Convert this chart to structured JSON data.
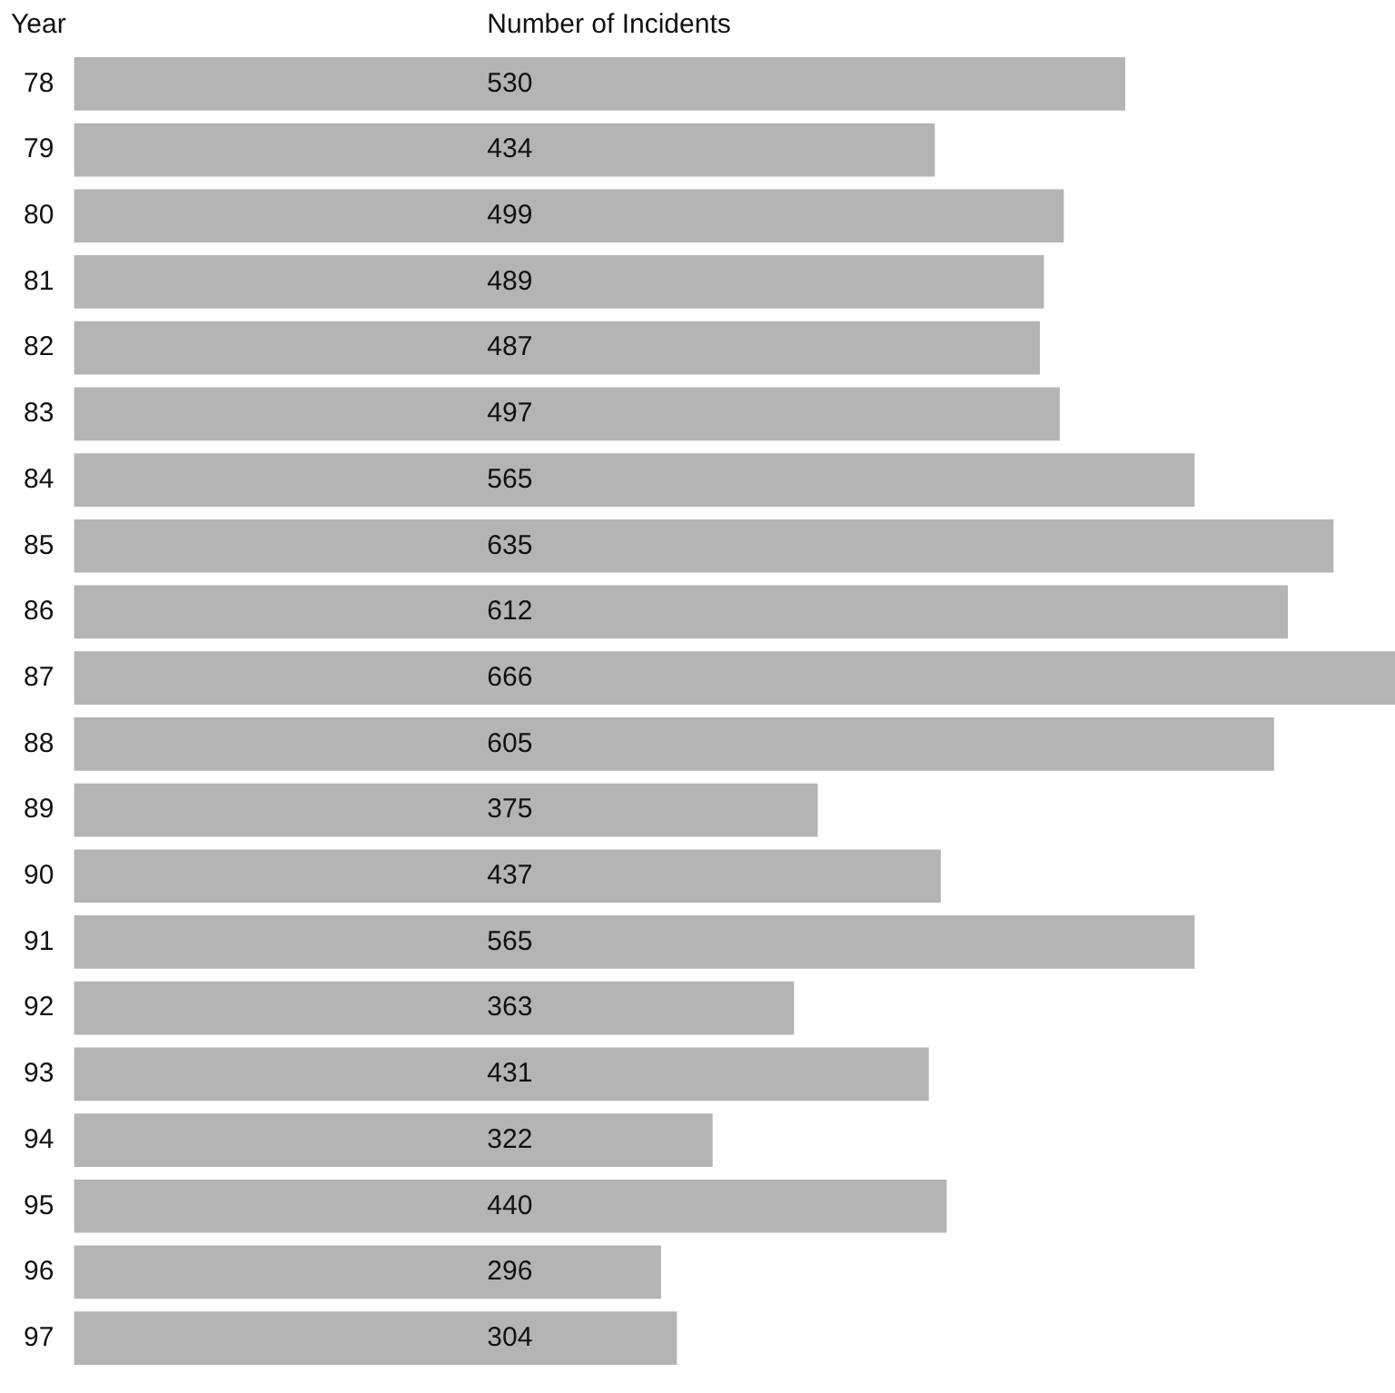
{
  "chart_data": {
    "type": "bar",
    "orientation": "horizontal",
    "xlabel": "Number of Incidents",
    "ylabel": "Year",
    "categories": [
      "78",
      "79",
      "80",
      "81",
      "82",
      "83",
      "84",
      "85",
      "86",
      "87",
      "88",
      "89",
      "90",
      "91",
      "92",
      "93",
      "94",
      "95",
      "96",
      "97"
    ],
    "values": [
      530,
      434,
      499,
      489,
      487,
      497,
      565,
      635,
      612,
      666,
      605,
      375,
      437,
      565,
      363,
      431,
      322,
      440,
      296,
      304
    ],
    "color": "#b4b4b4",
    "data_labels": true,
    "legend": false
  }
}
